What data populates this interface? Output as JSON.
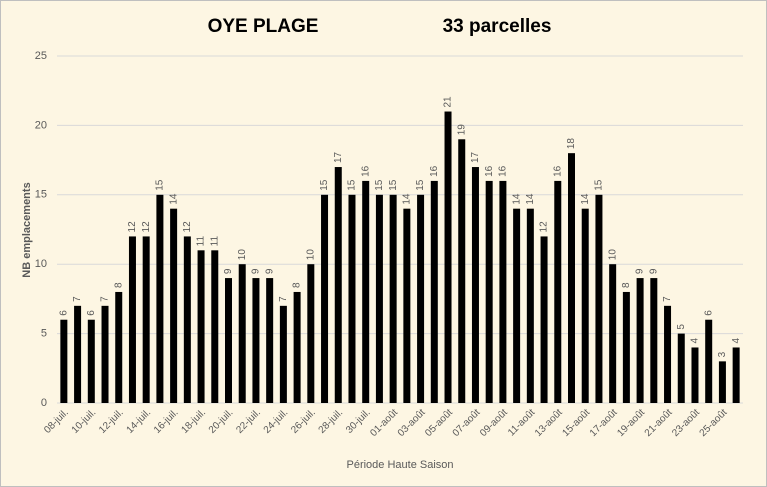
{
  "chart_data": {
    "type": "bar",
    "title": "OYE PLAGE",
    "subtitle": "33 parcelles",
    "x_label": "Période Haute Saison",
    "y_label": "NB emplacements",
    "categories": [
      "08-juil.",
      null,
      "10-juil.",
      null,
      "12-juil.",
      null,
      "14-juil.",
      null,
      "16-juil.",
      null,
      "18-juil.",
      null,
      "20-juil.",
      null,
      "22-juil.",
      null,
      "24-juil.",
      null,
      "26-juil.",
      null,
      "28-juil.",
      null,
      "30-juil.",
      null,
      "01-août",
      null,
      "03-août",
      null,
      "05-août",
      null,
      "07-août",
      null,
      "09-août",
      null,
      "11-août",
      null,
      "13-août",
      null,
      "15-août",
      null,
      "17-août",
      null,
      "19-août",
      null,
      "21-août",
      null,
      "23-août",
      null,
      "25-août",
      null
    ],
    "values": [
      6,
      7,
      6,
      7,
      8,
      12,
      12,
      15,
      14,
      12,
      11,
      11,
      9,
      10,
      9,
      9,
      7,
      8,
      10,
      15,
      17,
      15,
      16,
      15,
      15,
      14,
      15,
      16,
      21,
      19,
      17,
      16,
      16,
      14,
      14,
      12,
      16,
      18,
      14,
      15,
      10,
      8,
      9,
      9,
      7,
      5,
      4,
      6,
      3,
      4
    ],
    "color": "#000000",
    "ylim": [
      0,
      25
    ],
    "yticks": [
      0,
      5,
      10,
      15,
      20,
      25
    ],
    "grid": true
  }
}
